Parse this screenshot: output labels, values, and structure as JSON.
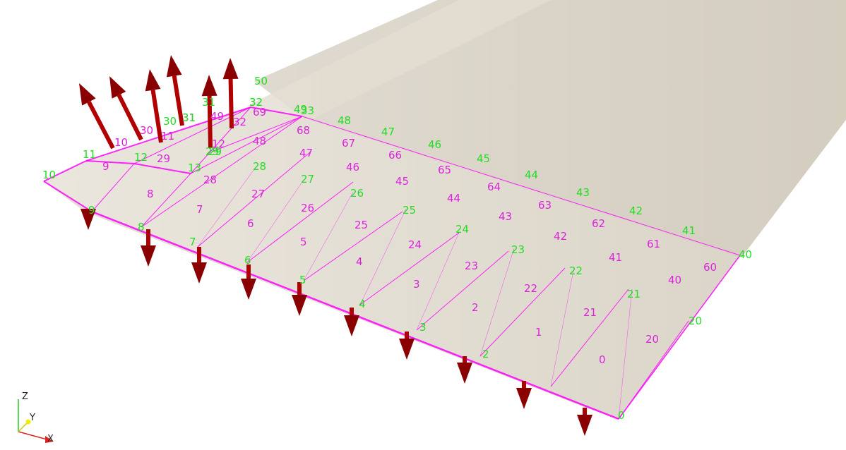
{
  "viewer": {
    "background": "#ffffff",
    "surface_color": "#d7d1c3",
    "edge_color": "#ff00ff",
    "node_label_color": "#22dd22",
    "element_label_color": "#dd22dd",
    "arrow_color": "#b00000"
  },
  "axes": {
    "z_label": "Z",
    "y_label": "Y",
    "x_label": "X"
  },
  "node_labels": [
    "0",
    "2",
    "3",
    "4",
    "5",
    "6",
    "7",
    "8",
    "9",
    "10",
    "11",
    "12",
    "13",
    "20",
    "21",
    "22",
    "23",
    "24",
    "25",
    "26",
    "27",
    "28",
    "29",
    "29",
    "30",
    "31",
    "32",
    "33",
    "31",
    "32",
    "40",
    "41",
    "42",
    "43",
    "44",
    "45",
    "46",
    "47",
    "48",
    "49",
    "50"
  ],
  "element_labels": [
    "0",
    "1",
    "2",
    "3",
    "4",
    "5",
    "6",
    "7",
    "8",
    "9",
    "10",
    "11",
    "12",
    "20",
    "21",
    "22",
    "23",
    "24",
    "25",
    "26",
    "27",
    "28",
    "29",
    "30",
    "31",
    "32",
    "40",
    "41",
    "42",
    "43",
    "44",
    "45",
    "46",
    "47",
    "48",
    "49",
    "60",
    "61",
    "62",
    "63",
    "64",
    "65",
    "66",
    "67",
    "68",
    "69"
  ]
}
